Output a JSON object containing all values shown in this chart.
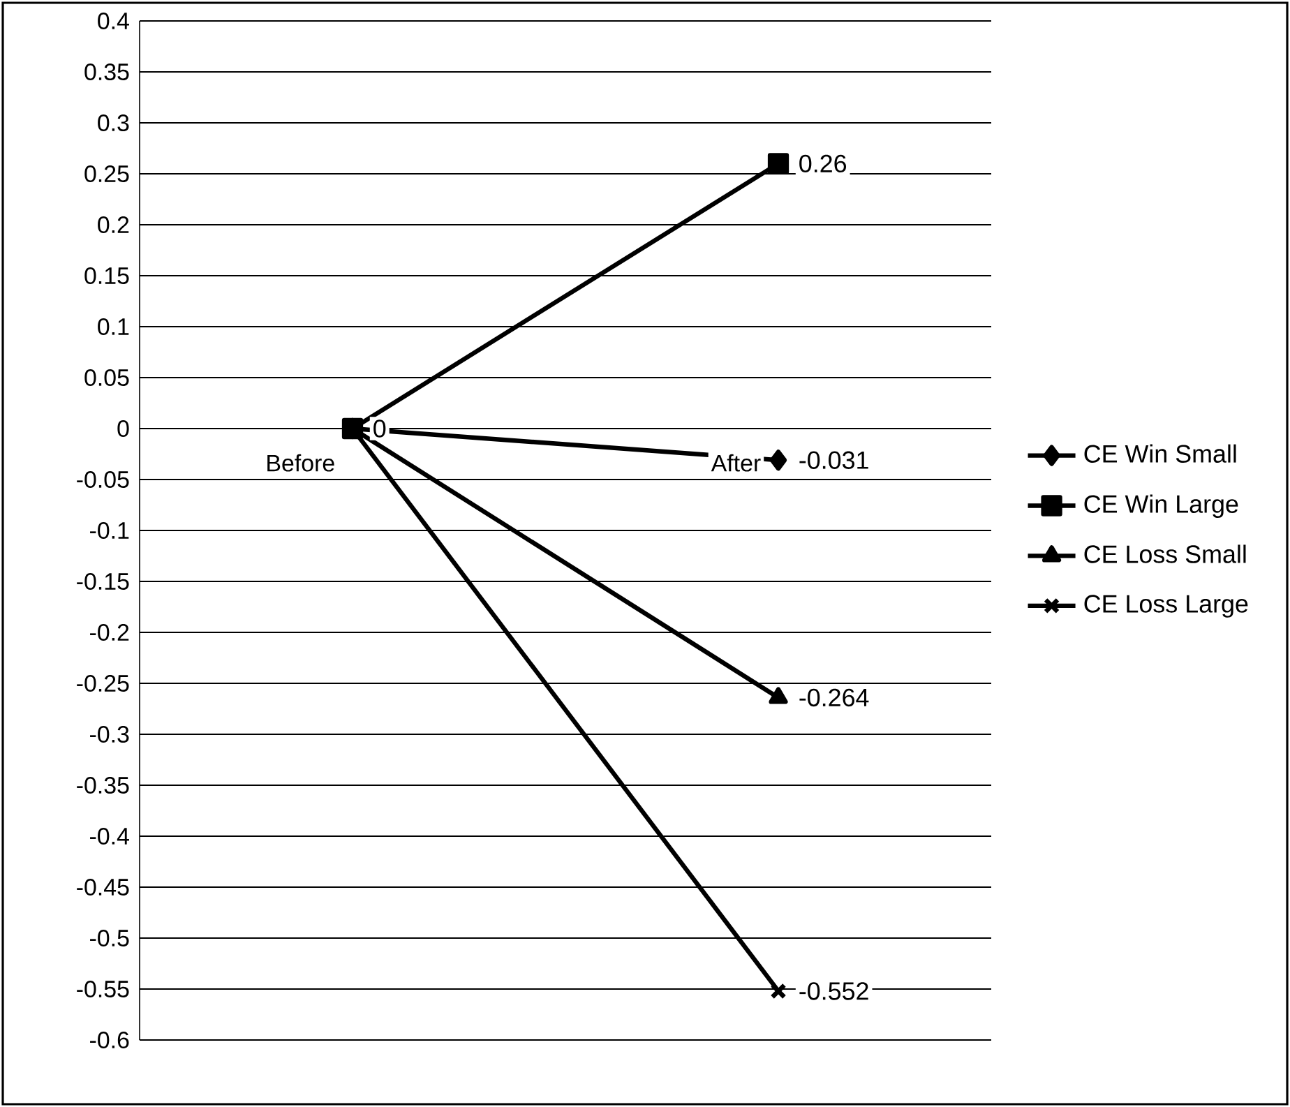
{
  "chart_data": {
    "type": "line",
    "categories": [
      "Before",
      "After"
    ],
    "series": [
      {
        "name": "CE Win Small",
        "color": "#000000",
        "marker": "diamond",
        "values": [
          0,
          -0.031
        ],
        "value_labels": [
          "0",
          "-0.031"
        ]
      },
      {
        "name": "CE Win Large",
        "color": "#000000",
        "marker": "square",
        "values": [
          0,
          0.26
        ],
        "value_labels": [
          null,
          "0.26"
        ]
      },
      {
        "name": "CE Loss Small",
        "color": "#000000",
        "marker": "triangle",
        "values": [
          0,
          -0.264
        ],
        "value_labels": [
          null,
          "-0.264"
        ]
      },
      {
        "name": "CE Loss Large",
        "color": "#000000",
        "marker": "cross",
        "values": [
          0,
          -0.552
        ],
        "value_labels": [
          null,
          "-0.552"
        ]
      }
    ],
    "ylim": [
      -0.6,
      0.4
    ],
    "yticks": [
      -0.6,
      -0.55,
      -0.5,
      -0.45,
      -0.4,
      -0.35,
      -0.3,
      -0.25,
      -0.2,
      -0.15,
      -0.1,
      -0.05,
      0,
      0.05,
      0.1,
      0.15,
      0.2,
      0.25,
      0.3,
      0.35,
      0.4
    ],
    "grid": "y",
    "legend": "right",
    "line_style": "solid"
  }
}
